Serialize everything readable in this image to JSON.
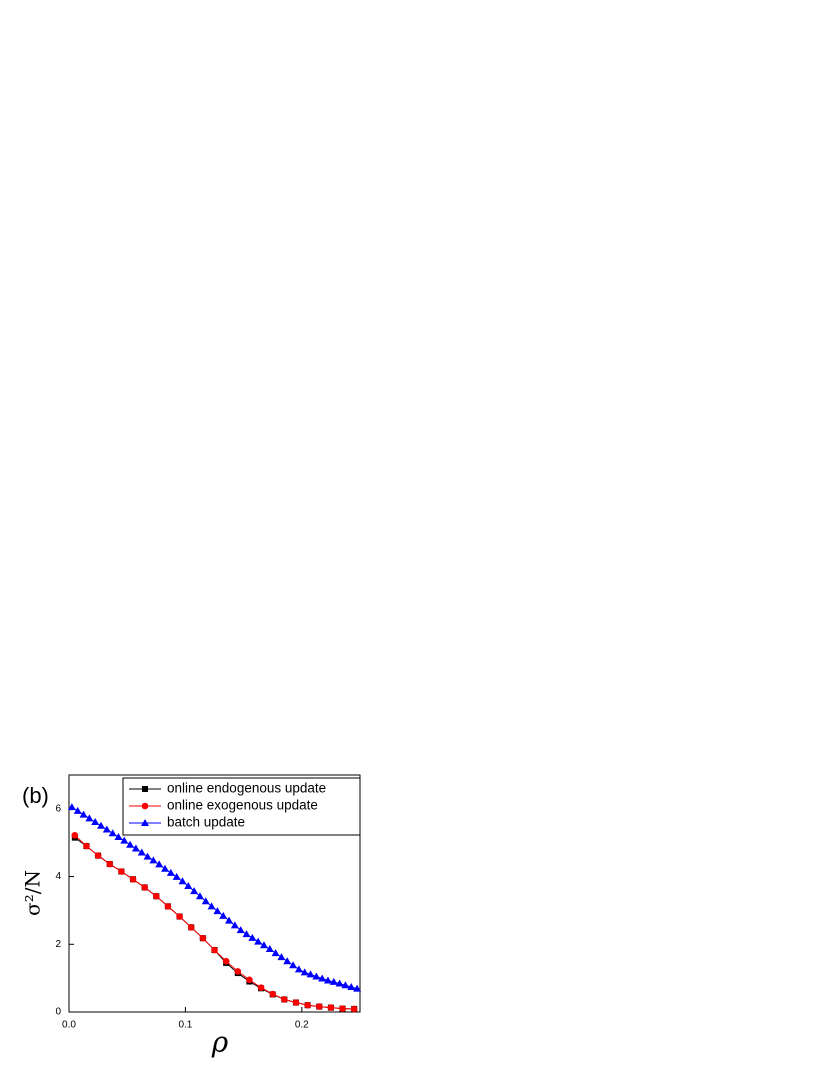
{
  "chart_data": {
    "type": "line",
    "panel_label": "(b)",
    "xlabel": "ρ",
    "ylabel": "σ²/N",
    "xlim": [
      0,
      0.25
    ],
    "ylim": [
      0,
      7
    ],
    "xticks": [
      {
        "value": 0,
        "label": "0.0"
      },
      0.1,
      0.2
    ],
    "yticks": [
      0,
      2,
      4,
      6
    ],
    "legend": "upper right",
    "series": [
      {
        "name": "online endogenous update",
        "color": "#000000",
        "marker": "square",
        "x": [
          0.005,
          0.015,
          0.025,
          0.035,
          0.045,
          0.055,
          0.065,
          0.075,
          0.085,
          0.095,
          0.105,
          0.115,
          0.125,
          0.135,
          0.145,
          0.155,
          0.165,
          0.175,
          0.185,
          0.195,
          0.205,
          0.215,
          0.225,
          0.235,
          0.245
        ],
        "values": [
          5.15,
          4.9,
          4.62,
          4.37,
          4.15,
          3.92,
          3.68,
          3.42,
          3.12,
          2.82,
          2.5,
          2.18,
          1.83,
          1.45,
          1.15,
          0.9,
          0.7,
          0.52,
          0.37,
          0.28,
          0.2,
          0.16,
          0.13,
          0.1,
          0.09
        ]
      },
      {
        "name": "online exogenous  update",
        "color": "#ff0000",
        "marker": "circle",
        "x": [
          0.005,
          0.015,
          0.025,
          0.035,
          0.045,
          0.055,
          0.065,
          0.075,
          0.085,
          0.095,
          0.105,
          0.115,
          0.125,
          0.135,
          0.145,
          0.155,
          0.165,
          0.175,
          0.185,
          0.195,
          0.205,
          0.215,
          0.225,
          0.235,
          0.245
        ],
        "values": [
          5.22,
          4.9,
          4.62,
          4.37,
          4.15,
          3.92,
          3.68,
          3.42,
          3.12,
          2.82,
          2.5,
          2.18,
          1.83,
          1.5,
          1.2,
          0.95,
          0.72,
          0.53,
          0.37,
          0.28,
          0.2,
          0.16,
          0.13,
          0.1,
          0.09
        ]
      },
      {
        "name": "batch update",
        "color": "#0000ff",
        "marker": "triangle",
        "x": [
          0.0025,
          0.0075,
          0.0125,
          0.0175,
          0.0225,
          0.0275,
          0.0325,
          0.0375,
          0.0425,
          0.0475,
          0.0525,
          0.0575,
          0.0625,
          0.0675,
          0.0725,
          0.0775,
          0.0825,
          0.0875,
          0.0925,
          0.0975,
          0.1025,
          0.1075,
          0.1125,
          0.1175,
          0.1225,
          0.1275,
          0.1325,
          0.1375,
          0.1425,
          0.1475,
          0.1525,
          0.1575,
          0.1625,
          0.1675,
          0.1725,
          0.1775,
          0.1825,
          0.1875,
          0.1925,
          0.1975,
          0.2025,
          0.2075,
          0.2125,
          0.2175,
          0.2225,
          0.2275,
          0.2325,
          0.2375,
          0.2425,
          0.2475
        ],
        "values": [
          6.05,
          5.94,
          5.83,
          5.72,
          5.61,
          5.5,
          5.39,
          5.28,
          5.17,
          5.06,
          4.94,
          4.83,
          4.71,
          4.59,
          4.48,
          4.36,
          4.23,
          4.11,
          3.99,
          3.86,
          3.72,
          3.57,
          3.42,
          3.27,
          3.12,
          2.98,
          2.84,
          2.7,
          2.56,
          2.42,
          2.3,
          2.19,
          2.08,
          1.97,
          1.86,
          1.74,
          1.62,
          1.5,
          1.38,
          1.26,
          1.17,
          1.11,
          1.05,
          0.99,
          0.93,
          0.89,
          0.84,
          0.79,
          0.74,
          0.69
        ]
      }
    ]
  }
}
